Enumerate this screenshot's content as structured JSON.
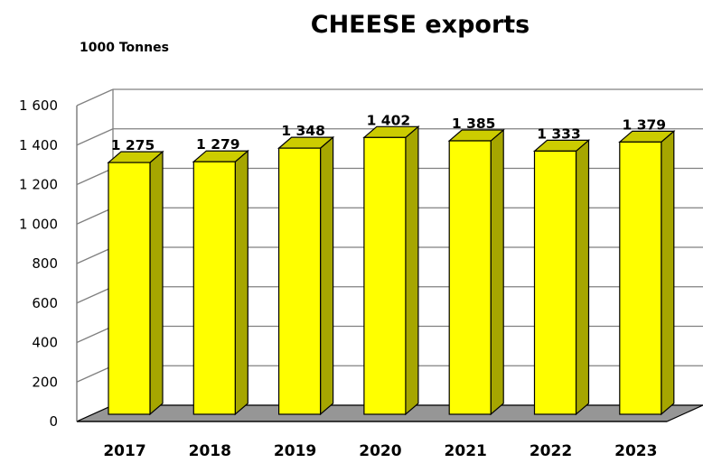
{
  "chart_data": {
    "type": "bar",
    "title": "CHEESE exports",
    "unit_label": "1000 Tonnes",
    "categories": [
      "2017",
      "2018",
      "2019",
      "2020",
      "2021",
      "2022",
      "2023"
    ],
    "values": [
      1275,
      1279,
      1348,
      1402,
      1385,
      1333,
      1379
    ],
    "data_labels": [
      "1 275",
      "1 279",
      "1 348",
      "1 402",
      "1 385",
      "1 333",
      "1 379"
    ],
    "y_ticks": [
      0,
      200,
      400,
      600,
      800,
      1000,
      1200,
      1400,
      1600
    ],
    "y_tick_labels": [
      "0",
      "200",
      "400",
      "600",
      "800",
      "1 000",
      "1 200",
      "1 400",
      "1 600"
    ],
    "ylim": [
      0,
      1600
    ],
    "grid": true,
    "style": "3d",
    "colors": {
      "bar_front": "#FFFF00",
      "bar_side": "#A6A600",
      "bar_top": "#CCCC00",
      "floor": "#969696",
      "grid": "#808080"
    }
  }
}
